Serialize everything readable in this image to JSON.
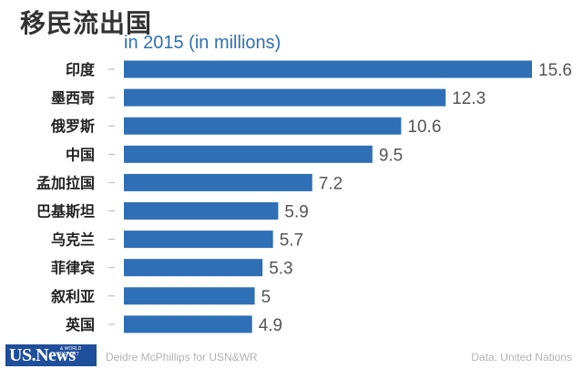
{
  "chart_data": {
    "type": "bar",
    "orientation": "horizontal",
    "title": "移民流出国",
    "subtitle": "in 2015 (in millions)",
    "categories": [
      "印度",
      "墨西哥",
      "俄罗斯",
      "中国",
      "孟加拉国",
      "巴基斯坦",
      "乌克兰",
      "菲律宾",
      "叙利亚",
      "英国"
    ],
    "values": [
      15.6,
      12.3,
      10.6,
      9.5,
      7.2,
      5.9,
      5.7,
      5.3,
      5,
      4.9
    ],
    "value_labels": [
      "15.6",
      "12.3",
      "10.6",
      "9.5",
      "7.2",
      "5.9",
      "5.7",
      "5.3",
      "5",
      "4.9"
    ],
    "xlim": [
      0,
      15.6
    ],
    "grid": false,
    "legend": "none",
    "bar_color": "#2f6fb6",
    "label_color": "#555555",
    "tick_color": "#b3b3b3"
  },
  "footer": {
    "credit": "Deidre McPhillips for USN&WR",
    "source": "Data: United Nations"
  },
  "logo": {
    "text": "US.News",
    "subtext": "& WORLD REPORT",
    "color": "#1f4e9a"
  }
}
